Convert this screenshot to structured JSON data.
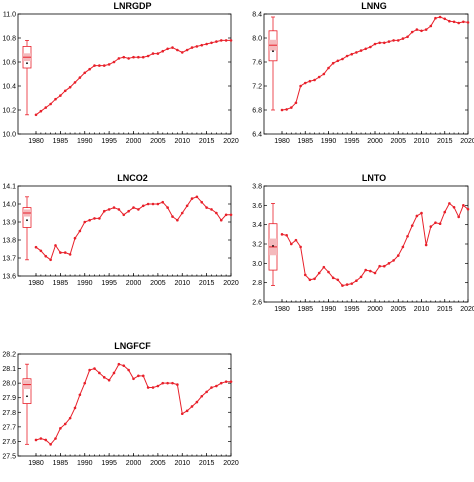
{
  "colors": {
    "series": "#e8202a",
    "box_fill": "#f4b9bc",
    "box_stroke": "#e8202a",
    "axis": "#000000"
  },
  "chart_data": [
    {
      "type": "line",
      "title": "LNRGDP",
      "x_ticks": [
        "1980",
        "1985",
        "1990",
        "1995",
        "2000",
        "2005",
        "2010",
        "2015",
        "2020"
      ],
      "y_ticks": [
        "10.0",
        "10.2",
        "10.4",
        "10.6",
        "10.8",
        "11.0"
      ],
      "ylim": [
        10.0,
        11.0
      ],
      "xlim": [
        1980,
        2020
      ],
      "x": [
        1980,
        1981,
        1982,
        1983,
        1984,
        1985,
        1986,
        1987,
        1988,
        1989,
        1990,
        1991,
        1992,
        1993,
        1994,
        1995,
        1996,
        1997,
        1998,
        1999,
        2000,
        2001,
        2002,
        2003,
        2004,
        2005,
        2006,
        2007,
        2008,
        2009,
        2010,
        2011,
        2012,
        2013,
        2014,
        2015,
        2016,
        2017,
        2018,
        2019,
        2020
      ],
      "values": [
        10.16,
        10.19,
        10.22,
        10.25,
        10.29,
        10.32,
        10.36,
        10.39,
        10.43,
        10.47,
        10.51,
        10.54,
        10.57,
        10.57,
        10.57,
        10.58,
        10.6,
        10.63,
        10.64,
        10.63,
        10.64,
        10.64,
        10.64,
        10.65,
        10.67,
        10.67,
        10.69,
        10.71,
        10.72,
        10.7,
        10.68,
        10.7,
        10.72,
        10.73,
        10.74,
        10.75,
        10.76,
        10.77,
        10.78,
        10.78,
        10.78
      ],
      "boxplot": {
        "q1": 10.55,
        "median": 10.64,
        "q3": 10.73,
        "mean": 10.59,
        "min": 10.16,
        "max": 10.78
      }
    },
    {
      "type": "line",
      "title": "LNNG",
      "x_ticks": [
        "1980",
        "1985",
        "1990",
        "1995",
        "2000",
        "2005",
        "2010",
        "2015",
        "2020"
      ],
      "y_ticks": [
        "6.4",
        "6.8",
        "7.2",
        "7.6",
        "8.0",
        "8.4"
      ],
      "ylim": [
        6.4,
        8.4
      ],
      "xlim": [
        1980,
        2020
      ],
      "x": [
        1980,
        1981,
        1982,
        1983,
        1984,
        1985,
        1986,
        1987,
        1988,
        1989,
        1990,
        1991,
        1992,
        1993,
        1994,
        1995,
        1996,
        1997,
        1998,
        1999,
        2000,
        2001,
        2002,
        2003,
        2004,
        2005,
        2006,
        2007,
        2008,
        2009,
        2010,
        2011,
        2012,
        2013,
        2014,
        2015,
        2016,
        2017,
        2018,
        2019,
        2020
      ],
      "values": [
        6.8,
        6.81,
        6.84,
        6.92,
        7.2,
        7.25,
        7.28,
        7.3,
        7.35,
        7.4,
        7.5,
        7.58,
        7.62,
        7.65,
        7.7,
        7.73,
        7.76,
        7.79,
        7.82,
        7.85,
        7.9,
        7.92,
        7.92,
        7.94,
        7.96,
        7.96,
        7.99,
        8.02,
        8.1,
        8.14,
        8.12,
        8.14,
        8.2,
        8.33,
        8.35,
        8.32,
        8.28,
        8.27,
        8.25,
        8.27,
        8.26
      ],
      "boxplot": {
        "q1": 7.62,
        "median": 7.88,
        "q3": 8.12,
        "mean": 7.78,
        "min": 6.8,
        "max": 8.35
      }
    },
    {
      "type": "line",
      "title": "LNCO2",
      "x_ticks": [
        "1980",
        "1985",
        "1990",
        "1995",
        "2000",
        "2005",
        "2010",
        "2015",
        "2020"
      ],
      "y_ticks": [
        "13.6",
        "13.7",
        "13.8",
        "13.9",
        "14.0",
        "14.1"
      ],
      "ylim": [
        13.6,
        14.1
      ],
      "xlim": [
        1980,
        2020
      ],
      "x": [
        1980,
        1981,
        1982,
        1983,
        1984,
        1985,
        1986,
        1987,
        1988,
        1989,
        1990,
        1991,
        1992,
        1993,
        1994,
        1995,
        1996,
        1997,
        1998,
        1999,
        2000,
        2001,
        2002,
        2003,
        2004,
        2005,
        2006,
        2007,
        2008,
        2009,
        2010,
        2011,
        2012,
        2013,
        2014,
        2015,
        2016,
        2017,
        2018,
        2019,
        2020
      ],
      "values": [
        13.76,
        13.74,
        13.71,
        13.69,
        13.77,
        13.73,
        13.73,
        13.72,
        13.81,
        13.85,
        13.9,
        13.91,
        13.92,
        13.92,
        13.96,
        13.97,
        13.98,
        13.97,
        13.94,
        13.96,
        13.98,
        13.97,
        13.99,
        14.0,
        14.0,
        14.0,
        14.01,
        13.98,
        13.93,
        13.91,
        13.95,
        13.99,
        14.03,
        14.04,
        14.01,
        13.98,
        13.97,
        13.95,
        13.91,
        13.94,
        13.94
      ],
      "boxplot": {
        "q1": 13.87,
        "median": 13.95,
        "q3": 13.98,
        "mean": 13.91,
        "min": 13.69,
        "max": 14.04
      }
    },
    {
      "type": "line",
      "title": "LNTO",
      "x_ticks": [
        "1980",
        "1985",
        "1990",
        "1995",
        "2000",
        "2005",
        "2010",
        "2015",
        "2020"
      ],
      "y_ticks": [
        "2.6",
        "2.8",
        "3.0",
        "3.2",
        "3.4",
        "3.6",
        "3.8"
      ],
      "ylim": [
        2.6,
        3.8
      ],
      "xlim": [
        1980,
        2020
      ],
      "x": [
        1980,
        1981,
        1982,
        1983,
        1984,
        1985,
        1986,
        1987,
        1988,
        1989,
        1990,
        1991,
        1992,
        1993,
        1994,
        1995,
        1996,
        1997,
        1998,
        1999,
        2000,
        2001,
        2002,
        2003,
        2004,
        2005,
        2006,
        2007,
        2008,
        2009,
        2010,
        2011,
        2012,
        2013,
        2014,
        2015,
        2016,
        2017,
        2018,
        2019,
        2020
      ],
      "values": [
        3.3,
        3.29,
        3.2,
        3.24,
        3.17,
        2.88,
        2.83,
        2.84,
        2.9,
        2.96,
        2.91,
        2.85,
        2.83,
        2.77,
        2.78,
        2.79,
        2.82,
        2.86,
        2.93,
        2.92,
        2.9,
        2.97,
        2.97,
        3.0,
        3.03,
        3.08,
        3.17,
        3.28,
        3.39,
        3.49,
        3.52,
        3.19,
        3.38,
        3.42,
        3.41,
        3.53,
        3.62,
        3.58,
        3.48,
        3.6,
        3.56
      ],
      "boxplot": {
        "q1": 2.93,
        "median": 3.17,
        "q3": 3.41,
        "mean": 3.18,
        "min": 2.77,
        "max": 3.62
      }
    },
    {
      "type": "line",
      "title": "LNGFCF",
      "x_ticks": [
        "1980",
        "1985",
        "1990",
        "1995",
        "2000",
        "2005",
        "2010",
        "2015",
        "2020"
      ],
      "y_ticks": [
        "27.5",
        "27.6",
        "27.7",
        "27.8",
        "27.9",
        "28.0",
        "28.1",
        "28.2"
      ],
      "ylim": [
        27.5,
        28.2
      ],
      "xlim": [
        1980,
        2020
      ],
      "x": [
        1980,
        1981,
        1982,
        1983,
        1984,
        1985,
        1986,
        1987,
        1988,
        1989,
        1990,
        1991,
        1992,
        1993,
        1994,
        1995,
        1996,
        1997,
        1998,
        1999,
        2000,
        2001,
        2002,
        2003,
        2004,
        2005,
        2006,
        2007,
        2008,
        2009,
        2010,
        2011,
        2012,
        2013,
        2014,
        2015,
        2016,
        2017,
        2018,
        2019,
        2020
      ],
      "values": [
        27.61,
        27.62,
        27.61,
        27.58,
        27.62,
        27.69,
        27.72,
        27.76,
        27.83,
        27.92,
        28.0,
        28.09,
        28.1,
        28.07,
        28.04,
        28.02,
        28.07,
        28.13,
        28.12,
        28.09,
        28.03,
        28.05,
        28.05,
        27.97,
        27.97,
        27.98,
        28.0,
        28.0,
        28.0,
        27.99,
        27.79,
        27.81,
        27.84,
        27.87,
        27.91,
        27.94,
        27.97,
        27.98,
        28.0,
        28.01,
        28.01
      ],
      "boxplot": {
        "q1": 27.86,
        "median": 27.99,
        "q3": 28.03,
        "mean": 27.91,
        "min": 27.58,
        "max": 28.13
      }
    }
  ]
}
